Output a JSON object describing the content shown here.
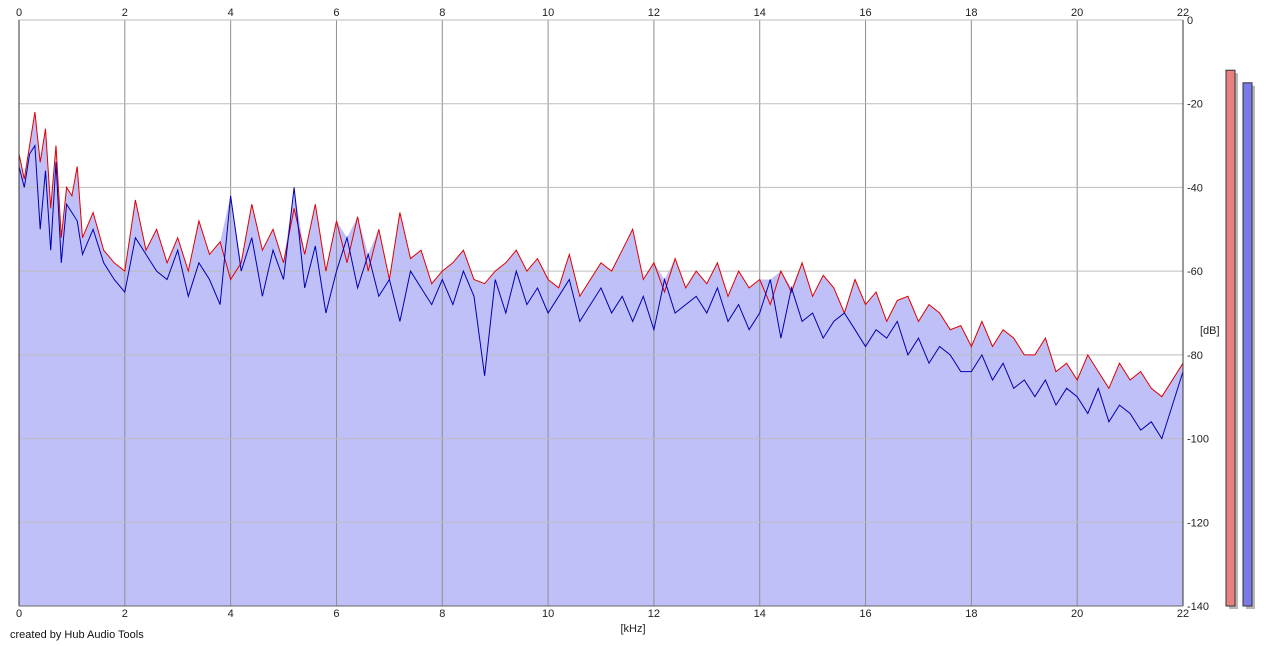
{
  "footer": {
    "credit": "created by Hub Audio Tools"
  },
  "chart_data": {
    "type": "line",
    "title": "",
    "xlabel": "[kHz]",
    "ylabel": "[dB]",
    "xlim": [
      0,
      22
    ],
    "ylim": [
      -140,
      0
    ],
    "xticks": [
      0,
      2,
      4,
      6,
      8,
      10,
      12,
      14,
      16,
      18,
      20,
      22
    ],
    "yticks": [
      0,
      -20,
      -40,
      -60,
      -80,
      -100,
      -120,
      -140
    ],
    "grid": true,
    "legend": "none",
    "series": [
      {
        "color": "#e00000",
        "x": [
          0,
          0.1,
          0.2,
          0.3,
          0.4,
          0.5,
          0.6,
          0.7,
          0.8,
          0.9,
          1.0,
          1.1,
          1.2,
          1.4,
          1.6,
          1.8,
          2.0,
          2.2,
          2.4,
          2.6,
          2.8,
          3.0,
          3.2,
          3.4,
          3.6,
          3.8,
          4.0,
          4.2,
          4.4,
          4.6,
          4.8,
          5.0,
          5.2,
          5.4,
          5.6,
          5.8,
          6.0,
          6.2,
          6.4,
          6.6,
          6.8,
          7.0,
          7.2,
          7.4,
          7.6,
          7.8,
          8.0,
          8.2,
          8.4,
          8.6,
          8.8,
          9.0,
          9.2,
          9.4,
          9.6,
          9.8,
          10.0,
          10.2,
          10.4,
          10.6,
          10.8,
          11.0,
          11.2,
          11.4,
          11.6,
          11.8,
          12.0,
          12.2,
          12.4,
          12.6,
          12.8,
          13.0,
          13.2,
          13.4,
          13.6,
          13.8,
          14.0,
          14.2,
          14.4,
          14.6,
          14.8,
          15.0,
          15.2,
          15.4,
          15.6,
          15.8,
          16.0,
          16.2,
          16.4,
          16.6,
          16.8,
          17.0,
          17.2,
          17.4,
          17.6,
          17.8,
          18.0,
          18.2,
          18.4,
          18.6,
          18.8,
          19.0,
          19.2,
          19.4,
          19.6,
          19.8,
          20.0,
          20.2,
          20.4,
          20.6,
          20.8,
          21.0,
          21.2,
          21.4,
          21.6,
          21.8,
          22.0
        ],
        "y": [
          -32,
          -38,
          -30,
          -22,
          -34,
          -26,
          -45,
          -30,
          -52,
          -40,
          -42,
          -35,
          -52,
          -46,
          -55,
          -58,
          -60,
          -43,
          -55,
          -50,
          -58,
          -52,
          -60,
          -48,
          -56,
          -53,
          -62,
          -58,
          -44,
          -55,
          -50,
          -58,
          -45,
          -56,
          -44,
          -60,
          -48,
          -58,
          -47,
          -60,
          -50,
          -62,
          -46,
          -57,
          -55,
          -63,
          -60,
          -58,
          -55,
          -62,
          -63,
          -60,
          -58,
          -55,
          -60,
          -57,
          -62,
          -64,
          -56,
          -66,
          -62,
          -58,
          -60,
          -55,
          -50,
          -62,
          -58,
          -65,
          -57,
          -64,
          -60,
          -63,
          -58,
          -66,
          -60,
          -64,
          -62,
          -68,
          -60,
          -65,
          -58,
          -66,
          -61,
          -64,
          -70,
          -62,
          -68,
          -65,
          -72,
          -67,
          -66,
          -72,
          -68,
          -70,
          -74,
          -73,
          -78,
          -72,
          -78,
          -74,
          -76,
          -80,
          -80,
          -76,
          -84,
          -82,
          -86,
          -80,
          -84,
          -88,
          -82,
          -86,
          -84,
          -88,
          -90,
          -86,
          -82
        ]
      },
      {
        "color": "#0000b0",
        "x": [
          0,
          0.1,
          0.2,
          0.3,
          0.4,
          0.5,
          0.6,
          0.7,
          0.8,
          0.9,
          1.0,
          1.1,
          1.2,
          1.4,
          1.6,
          1.8,
          2.0,
          2.2,
          2.4,
          2.6,
          2.8,
          3.0,
          3.2,
          3.4,
          3.6,
          3.8,
          4.0,
          4.2,
          4.4,
          4.6,
          4.8,
          5.0,
          5.2,
          5.4,
          5.6,
          5.8,
          6.0,
          6.2,
          6.4,
          6.6,
          6.8,
          7.0,
          7.2,
          7.4,
          7.6,
          7.8,
          8.0,
          8.2,
          8.4,
          8.6,
          8.8,
          9.0,
          9.2,
          9.4,
          9.6,
          9.8,
          10.0,
          10.2,
          10.4,
          10.6,
          10.8,
          11.0,
          11.2,
          11.4,
          11.6,
          11.8,
          12.0,
          12.2,
          12.4,
          12.6,
          12.8,
          13.0,
          13.2,
          13.4,
          13.6,
          13.8,
          14.0,
          14.2,
          14.4,
          14.6,
          14.8,
          15.0,
          15.2,
          15.4,
          15.6,
          15.8,
          16.0,
          16.2,
          16.4,
          16.6,
          16.8,
          17.0,
          17.2,
          17.4,
          17.6,
          17.8,
          18.0,
          18.2,
          18.4,
          18.6,
          18.8,
          19.0,
          19.2,
          19.4,
          19.6,
          19.8,
          20.0,
          20.2,
          20.4,
          20.6,
          20.8,
          21.0,
          21.2,
          21.4,
          21.6,
          21.8,
          22.0
        ],
        "y": [
          -35,
          -40,
          -32,
          -30,
          -50,
          -36,
          -55,
          -34,
          -58,
          -44,
          -46,
          -48,
          -56,
          -50,
          -58,
          -62,
          -65,
          -52,
          -56,
          -60,
          -62,
          -55,
          -66,
          -58,
          -62,
          -68,
          -42,
          -60,
          -52,
          -66,
          -55,
          -62,
          -40,
          -64,
          -54,
          -70,
          -60,
          -52,
          -64,
          -56,
          -66,
          -62,
          -72,
          -60,
          -64,
          -68,
          -62,
          -68,
          -60,
          -66,
          -85,
          -62,
          -70,
          -60,
          -68,
          -64,
          -70,
          -66,
          -62,
          -72,
          -68,
          -64,
          -70,
          -66,
          -72,
          -66,
          -74,
          -62,
          -70,
          -68,
          -66,
          -70,
          -64,
          -72,
          -68,
          -74,
          -70,
          -62,
          -76,
          -64,
          -72,
          -70,
          -76,
          -72,
          -70,
          -74,
          -78,
          -74,
          -76,
          -72,
          -80,
          -76,
          -82,
          -78,
          -80,
          -84,
          -84,
          -80,
          -86,
          -82,
          -88,
          -86,
          -90,
          -86,
          -92,
          -88,
          -90,
          -94,
          -88,
          -96,
          -92,
          -94,
          -98,
          -96,
          -100,
          -92,
          -84
        ]
      }
    ],
    "level_meters": [
      {
        "color": "#e88080",
        "value_db": -12
      },
      {
        "color": "#7a7ae8",
        "value_db": -15
      }
    ]
  }
}
